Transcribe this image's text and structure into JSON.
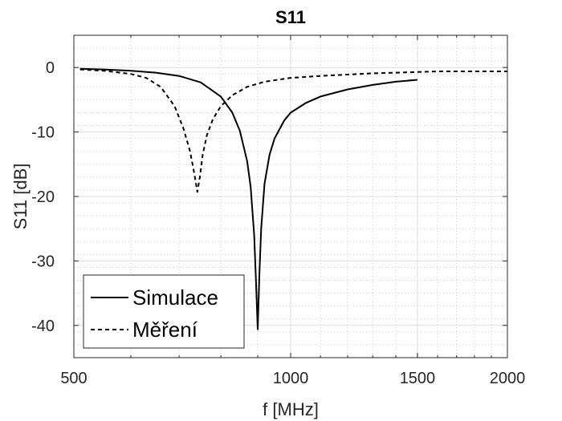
{
  "chart_data": {
    "type": "line",
    "title": "S11",
    "xlabel": "f [MHz]",
    "ylabel": "S11 [dB]",
    "xscale": "log",
    "xlim": [
      500,
      2000
    ],
    "ylim": [
      -45,
      5
    ],
    "xticks": [
      500,
      1000,
      1500,
      2000
    ],
    "xtick_labels": [
      "500",
      "1000",
      "1500",
      "2000"
    ],
    "yticks": [
      0,
      -10,
      -20,
      -30,
      -40
    ],
    "ytick_labels": [
      "0",
      "-10",
      "-20",
      "-30",
      "-40"
    ],
    "grid": true,
    "minor_grid": true,
    "legend_position": "bottom-left",
    "series": [
      {
        "name": "Simulace",
        "style": "solid",
        "color": "#000000",
        "x": [
          510,
          550,
          600,
          650,
          700,
          750,
          800,
          830,
          850,
          870,
          880,
          890,
          895,
          900,
          905,
          910,
          920,
          935,
          950,
          980,
          1000,
          1050,
          1100,
          1200,
          1300,
          1400,
          1500
        ],
        "y": [
          -0.2,
          -0.3,
          -0.5,
          -0.8,
          -1.3,
          -2.3,
          -4.5,
          -7.0,
          -9.8,
          -14.5,
          -18.5,
          -26,
          -33,
          -40.6,
          -32,
          -25,
          -18,
          -13.5,
          -11,
          -8.2,
          -7.0,
          -5.5,
          -4.5,
          -3.4,
          -2.7,
          -2.2,
          -1.9
        ]
      },
      {
        "name": "Měření",
        "style": "dashed",
        "color": "#000000",
        "x": [
          510,
          550,
          600,
          630,
          660,
          690,
          710,
          725,
          735,
          742,
          748,
          755,
          765,
          780,
          800,
          830,
          870,
          920,
          1000,
          1100,
          1200,
          1300,
          1400,
          1500,
          1600,
          1700,
          1800,
          1900,
          2000
        ],
        "y": [
          -0.3,
          -0.5,
          -1.0,
          -1.6,
          -3.0,
          -6.0,
          -9.5,
          -13.0,
          -16.5,
          -19.3,
          -17.0,
          -13.5,
          -10.5,
          -8.0,
          -6.0,
          -4.3,
          -3.0,
          -2.2,
          -1.6,
          -1.3,
          -1.1,
          -0.9,
          -0.8,
          -0.7,
          -0.6,
          -0.6,
          -0.6,
          -0.6,
          -0.6
        ]
      }
    ]
  }
}
